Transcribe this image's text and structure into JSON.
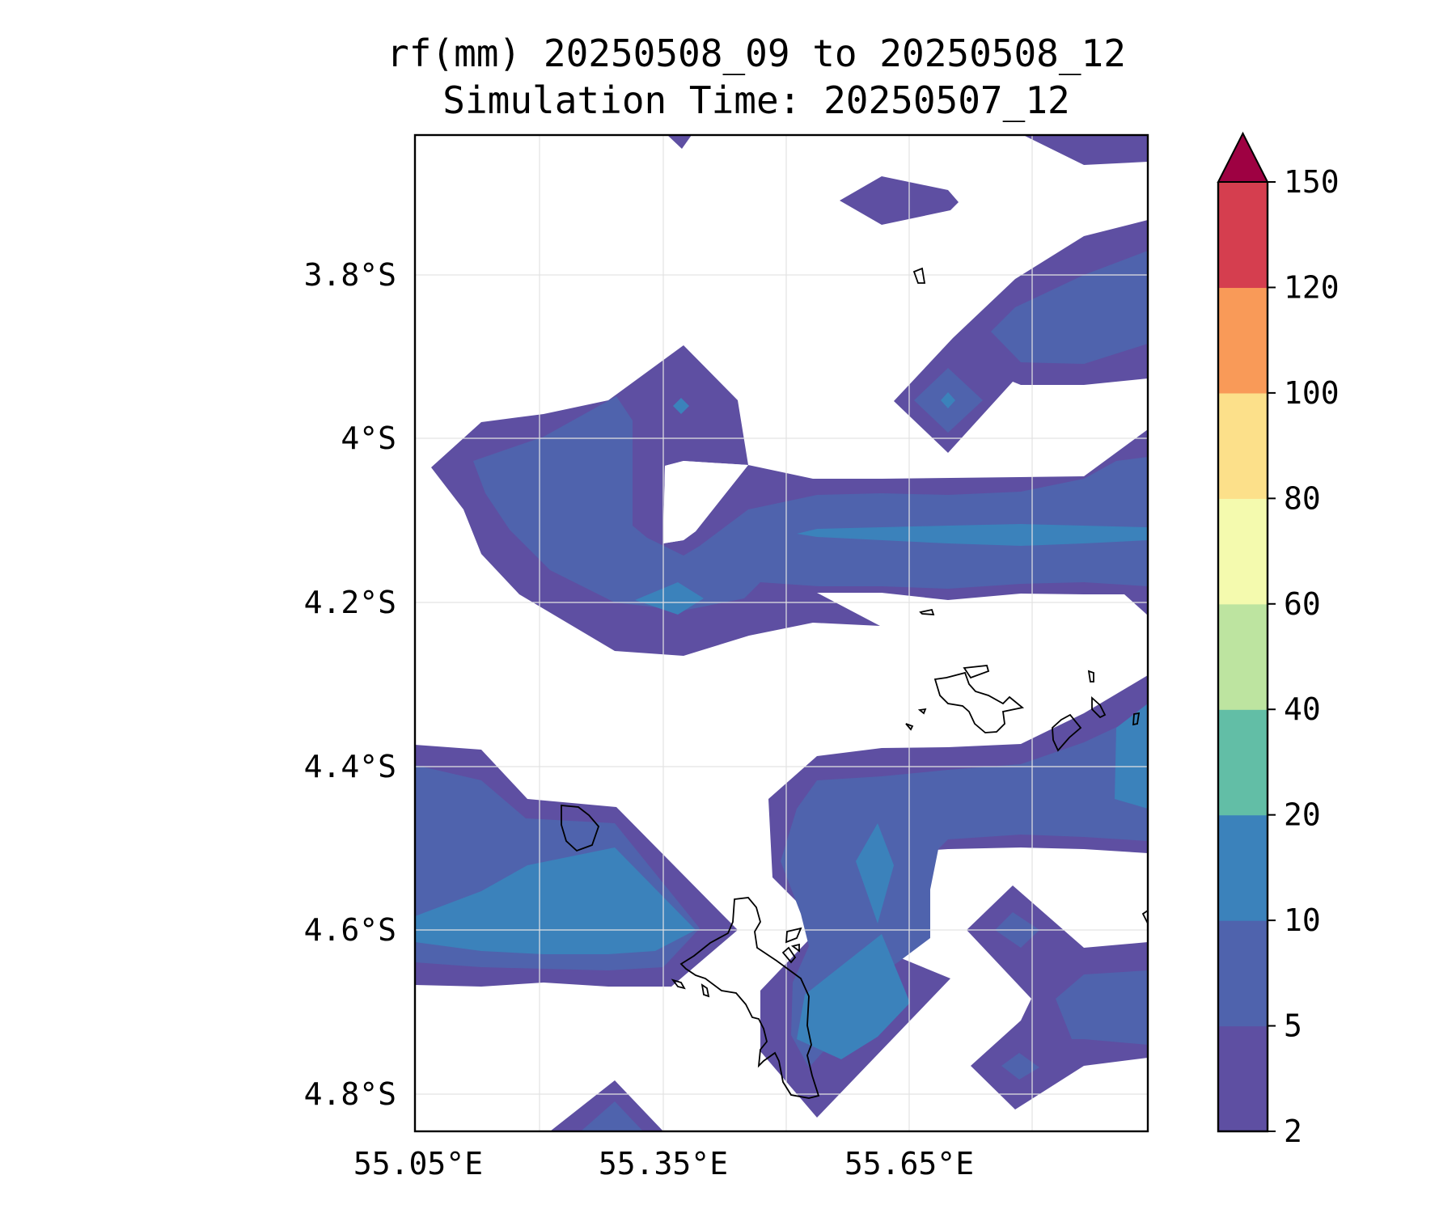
{
  "title": {
    "line1": "rf(mm) 20250508_09 to 20250508_12",
    "line2": "Simulation Time: 20250507_12"
  },
  "map": {
    "lon_ticks": [
      "55.05°E",
      "55.35°E",
      "55.65°E"
    ],
    "lat_ticks": [
      "3.8°S",
      "4°S",
      "4.2°S",
      "4.4°S",
      "4.6°S",
      "4.8°S"
    ]
  },
  "colorbar": {
    "levels": [
      "2",
      "5",
      "10",
      "20",
      "40",
      "60",
      "80",
      "100",
      "120",
      "150"
    ],
    "colors": [
      "#5e4fa2",
      "#4f63ad",
      "#3b82bb",
      "#62bea6",
      "#bde4a0",
      "#f4faae",
      "#fce08a",
      "#f99a58",
      "#d53e4f",
      "#9e0142"
    ],
    "extend": "max"
  }
}
